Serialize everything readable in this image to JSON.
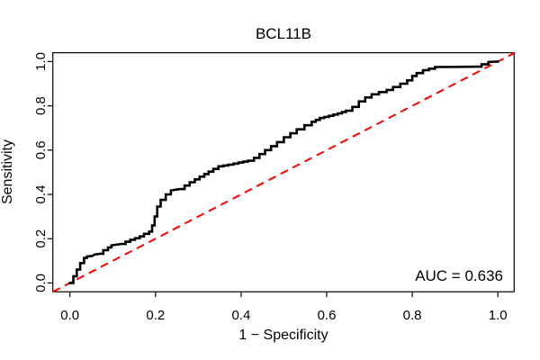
{
  "chart_data": {
    "type": "line",
    "title": "BCL11B",
    "xlabel": "1 − Specificity",
    "ylabel": "Sensitivity",
    "xlim": [
      -0.04,
      1.04
    ],
    "ylim": [
      -0.04,
      1.04
    ],
    "grid": false,
    "legend": "none",
    "x_ticks": [
      0.0,
      0.2,
      0.4,
      0.6,
      0.8,
      1.0
    ],
    "y_ticks": [
      0.0,
      0.2,
      0.4,
      0.6,
      0.8,
      1.0
    ],
    "x_tick_labels": [
      "0.0",
      "0.2",
      "0.4",
      "0.6",
      "0.8",
      "1.0"
    ],
    "y_tick_labels": [
      "0.0",
      "0.2",
      "0.4",
      "0.6",
      "0.8",
      "1.0"
    ],
    "series": [
      {
        "name": "ROC curve",
        "color": "#000000",
        "line_style": "solid",
        "line_width": 2.6,
        "points": [
          [
            0.0,
            0.0
          ],
          [
            0.008,
            0.03
          ],
          [
            0.016,
            0.06
          ],
          [
            0.024,
            0.09
          ],
          [
            0.033,
            0.113
          ],
          [
            0.04,
            0.12
          ],
          [
            0.053,
            0.122
          ],
          [
            0.057,
            0.128
          ],
          [
            0.072,
            0.132
          ],
          [
            0.078,
            0.148
          ],
          [
            0.089,
            0.16
          ],
          [
            0.097,
            0.17
          ],
          [
            0.12,
            0.176
          ],
          [
            0.13,
            0.186
          ],
          [
            0.141,
            0.195
          ],
          [
            0.152,
            0.202
          ],
          [
            0.163,
            0.21
          ],
          [
            0.173,
            0.222
          ],
          [
            0.185,
            0.232
          ],
          [
            0.192,
            0.26
          ],
          [
            0.198,
            0.3
          ],
          [
            0.204,
            0.345
          ],
          [
            0.212,
            0.375
          ],
          [
            0.224,
            0.4
          ],
          [
            0.236,
            0.418
          ],
          [
            0.257,
            0.424
          ],
          [
            0.268,
            0.44
          ],
          [
            0.28,
            0.455
          ],
          [
            0.292,
            0.468
          ],
          [
            0.303,
            0.48
          ],
          [
            0.314,
            0.492
          ],
          [
            0.324,
            0.503
          ],
          [
            0.335,
            0.515
          ],
          [
            0.347,
            0.527
          ],
          [
            0.37,
            0.534
          ],
          [
            0.394,
            0.544
          ],
          [
            0.416,
            0.552
          ],
          [
            0.43,
            0.565
          ],
          [
            0.443,
            0.582
          ],
          [
            0.456,
            0.6
          ],
          [
            0.47,
            0.618
          ],
          [
            0.484,
            0.636
          ],
          [
            0.5,
            0.658
          ],
          [
            0.515,
            0.676
          ],
          [
            0.53,
            0.694
          ],
          [
            0.548,
            0.712
          ],
          [
            0.565,
            0.728
          ],
          [
            0.584,
            0.745
          ],
          [
            0.605,
            0.755
          ],
          [
            0.626,
            0.766
          ],
          [
            0.645,
            0.778
          ],
          [
            0.66,
            0.795
          ],
          [
            0.675,
            0.82
          ],
          [
            0.69,
            0.838
          ],
          [
            0.705,
            0.852
          ],
          [
            0.722,
            0.862
          ],
          [
            0.74,
            0.872
          ],
          [
            0.755,
            0.885
          ],
          [
            0.772,
            0.9
          ],
          [
            0.788,
            0.915
          ],
          [
            0.8,
            0.935
          ],
          [
            0.81,
            0.948
          ],
          [
            0.825,
            0.961
          ],
          [
            0.853,
            0.975
          ],
          [
            0.955,
            0.977
          ],
          [
            0.962,
            0.988
          ],
          [
            0.978,
            0.998
          ],
          [
            1.0,
            1.0
          ]
        ]
      },
      {
        "name": "chance diagonal",
        "color": "#FF0000",
        "line_style": "dashed",
        "line_width": 2,
        "points": [
          [
            0,
            0
          ],
          [
            1,
            1
          ]
        ]
      }
    ],
    "annotations": [
      {
        "text": "AUC = 0.636",
        "x": 1.0,
        "y": 0.05,
        "align": "right"
      }
    ],
    "auc": 0.636
  }
}
